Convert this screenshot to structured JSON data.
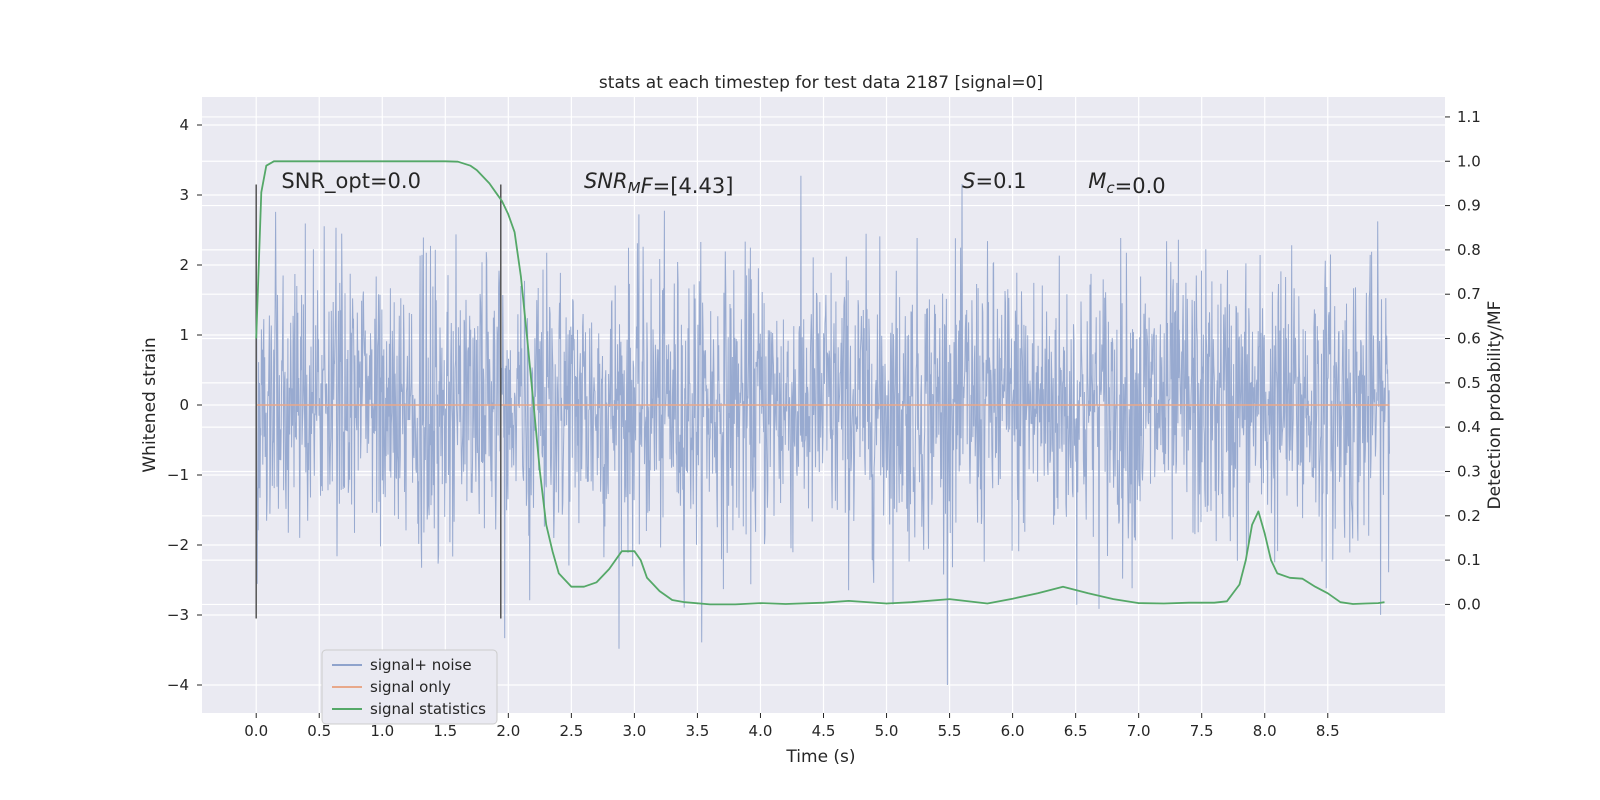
{
  "chart_data": {
    "type": "line",
    "title": "stats at each timestep for test data 2187 [signal=0]",
    "xlabel": "Time (s)",
    "ylabel": "Whitened strain",
    "y2label": "Detection probability/MF",
    "xlim": [
      -0.43,
      9.43
    ],
    "ylim": [
      -4.4,
      4.4
    ],
    "y2lim": [
      -0.245,
      1.145
    ],
    "x_ticks": [
      0.0,
      0.5,
      1.0,
      1.5,
      2.0,
      2.5,
      3.0,
      3.5,
      4.0,
      4.5,
      5.0,
      5.5,
      6.0,
      6.5,
      7.0,
      7.5,
      8.0,
      8.5
    ],
    "x_tick_labels": [
      "0.0",
      "0.5",
      "1.0",
      "1.5",
      "2.0",
      "2.5",
      "3.0",
      "3.5",
      "4.0",
      "4.5",
      "5.0",
      "5.5",
      "6.0",
      "6.5",
      "7.0",
      "7.5",
      "8.0",
      "8.5"
    ],
    "y_ticks": [
      4,
      3,
      2,
      1,
      0,
      -1,
      -2,
      -3,
      -4
    ],
    "y_tick_labels": [
      "4",
      "3",
      "2",
      "1",
      "0",
      "−1",
      "−2",
      "−3",
      "−4"
    ],
    "y2_ticks": [
      1.1,
      1.0,
      0.9,
      0.8,
      0.7,
      0.6,
      0.5,
      0.4,
      0.3,
      0.2,
      0.1,
      0.0
    ],
    "y2_tick_labels": [
      "1.1",
      "1.0",
      "0.9",
      "0.8",
      "0.7",
      "0.6",
      "0.5",
      "0.4",
      "0.3",
      "0.2",
      "0.1",
      "0.0"
    ],
    "grid": true,
    "legend_position": "bottom-left",
    "colors": {
      "noise": "#8fa3cc",
      "signal_only": "#e8a88a",
      "statistics": "#55a868",
      "marker": "#555555",
      "plot_bg": "#eaeaf2",
      "grid": "#ffffff"
    },
    "annotations": [
      {
        "x": 0.2,
        "y": 3.2,
        "parts": [
          {
            "t": "SNR_opt=0.0",
            "style": "normal",
            "sub": false
          }
        ]
      },
      {
        "x": 2.6,
        "y": 3.2,
        "parts": [
          {
            "t": "SNR",
            "style": "italic",
            "sub": false
          },
          {
            "t": "M",
            "style": "italic",
            "sub": true
          },
          {
            "t": "F",
            "style": "italic",
            "sub": false
          },
          {
            "t": "=[4.43]",
            "style": "normal",
            "sub": false
          }
        ]
      },
      {
        "x": 5.6,
        "y": 3.2,
        "parts": [
          {
            "t": "S",
            "style": "italic",
            "sub": false
          },
          {
            "t": "=0.1",
            "style": "normal",
            "sub": false
          }
        ]
      },
      {
        "x": 6.6,
        "y": 3.2,
        "parts": [
          {
            "t": "M",
            "style": "italic",
            "sub": false
          },
          {
            "t": "c",
            "style": "italic",
            "sub": true
          },
          {
            "t": "=0.0",
            "style": "normal",
            "sub": false
          }
        ]
      }
    ],
    "vlines": [
      {
        "x": 0.0,
        "y": [
          -3.05,
          3.15
        ]
      },
      {
        "x": 1.94,
        "y": [
          -3.05,
          3.15
        ]
      }
    ],
    "series": [
      {
        "name": "signal+ noise",
        "kind": "noise",
        "x_range": [
          0.0,
          8.99
        ],
        "envelope": [
          -4.0,
          4.0
        ]
      },
      {
        "name": "signal only",
        "kind": "flat",
        "value": 0.0
      },
      {
        "name": "signal statistics",
        "kind": "line",
        "axis": "right",
        "x": [
          0.0,
          0.04,
          0.08,
          0.14,
          0.2,
          0.3,
          0.5,
          0.8,
          1.0,
          1.3,
          1.5,
          1.6,
          1.7,
          1.75,
          1.8,
          1.85,
          1.9,
          1.95,
          2.0,
          2.05,
          2.1,
          2.15,
          2.2,
          2.25,
          2.3,
          2.35,
          2.4,
          2.5,
          2.6,
          2.7,
          2.8,
          2.9,
          3.0,
          3.05,
          3.1,
          3.2,
          3.3,
          3.4,
          3.6,
          3.8,
          4.0,
          4.2,
          4.5,
          4.7,
          5.0,
          5.2,
          5.5,
          5.8,
          6.0,
          6.2,
          6.4,
          6.6,
          6.8,
          7.0,
          7.2,
          7.4,
          7.6,
          7.7,
          7.8,
          7.85,
          7.9,
          7.95,
          8.0,
          8.05,
          8.1,
          8.2,
          8.3,
          8.4,
          8.5,
          8.6,
          8.7,
          8.8,
          8.9,
          8.95
        ],
        "y": [
          0.6,
          0.93,
          0.99,
          1.0,
          1.0,
          1.0,
          1.0,
          1.0,
          1.0,
          1.0,
          1.0,
          0.999,
          0.99,
          0.98,
          0.965,
          0.95,
          0.93,
          0.91,
          0.88,
          0.84,
          0.74,
          0.6,
          0.45,
          0.3,
          0.18,
          0.12,
          0.07,
          0.04,
          0.04,
          0.05,
          0.08,
          0.12,
          0.12,
          0.1,
          0.06,
          0.03,
          0.01,
          0.005,
          0.0,
          0.0,
          0.003,
          0.001,
          0.004,
          0.008,
          0.002,
          0.005,
          0.012,
          0.002,
          0.013,
          0.025,
          0.04,
          0.025,
          0.012,
          0.003,
          0.002,
          0.004,
          0.004,
          0.007,
          0.045,
          0.1,
          0.18,
          0.21,
          0.16,
          0.1,
          0.07,
          0.06,
          0.058,
          0.04,
          0.025,
          0.005,
          0.001,
          0.002,
          0.003,
          0.005
        ]
      }
    ]
  }
}
